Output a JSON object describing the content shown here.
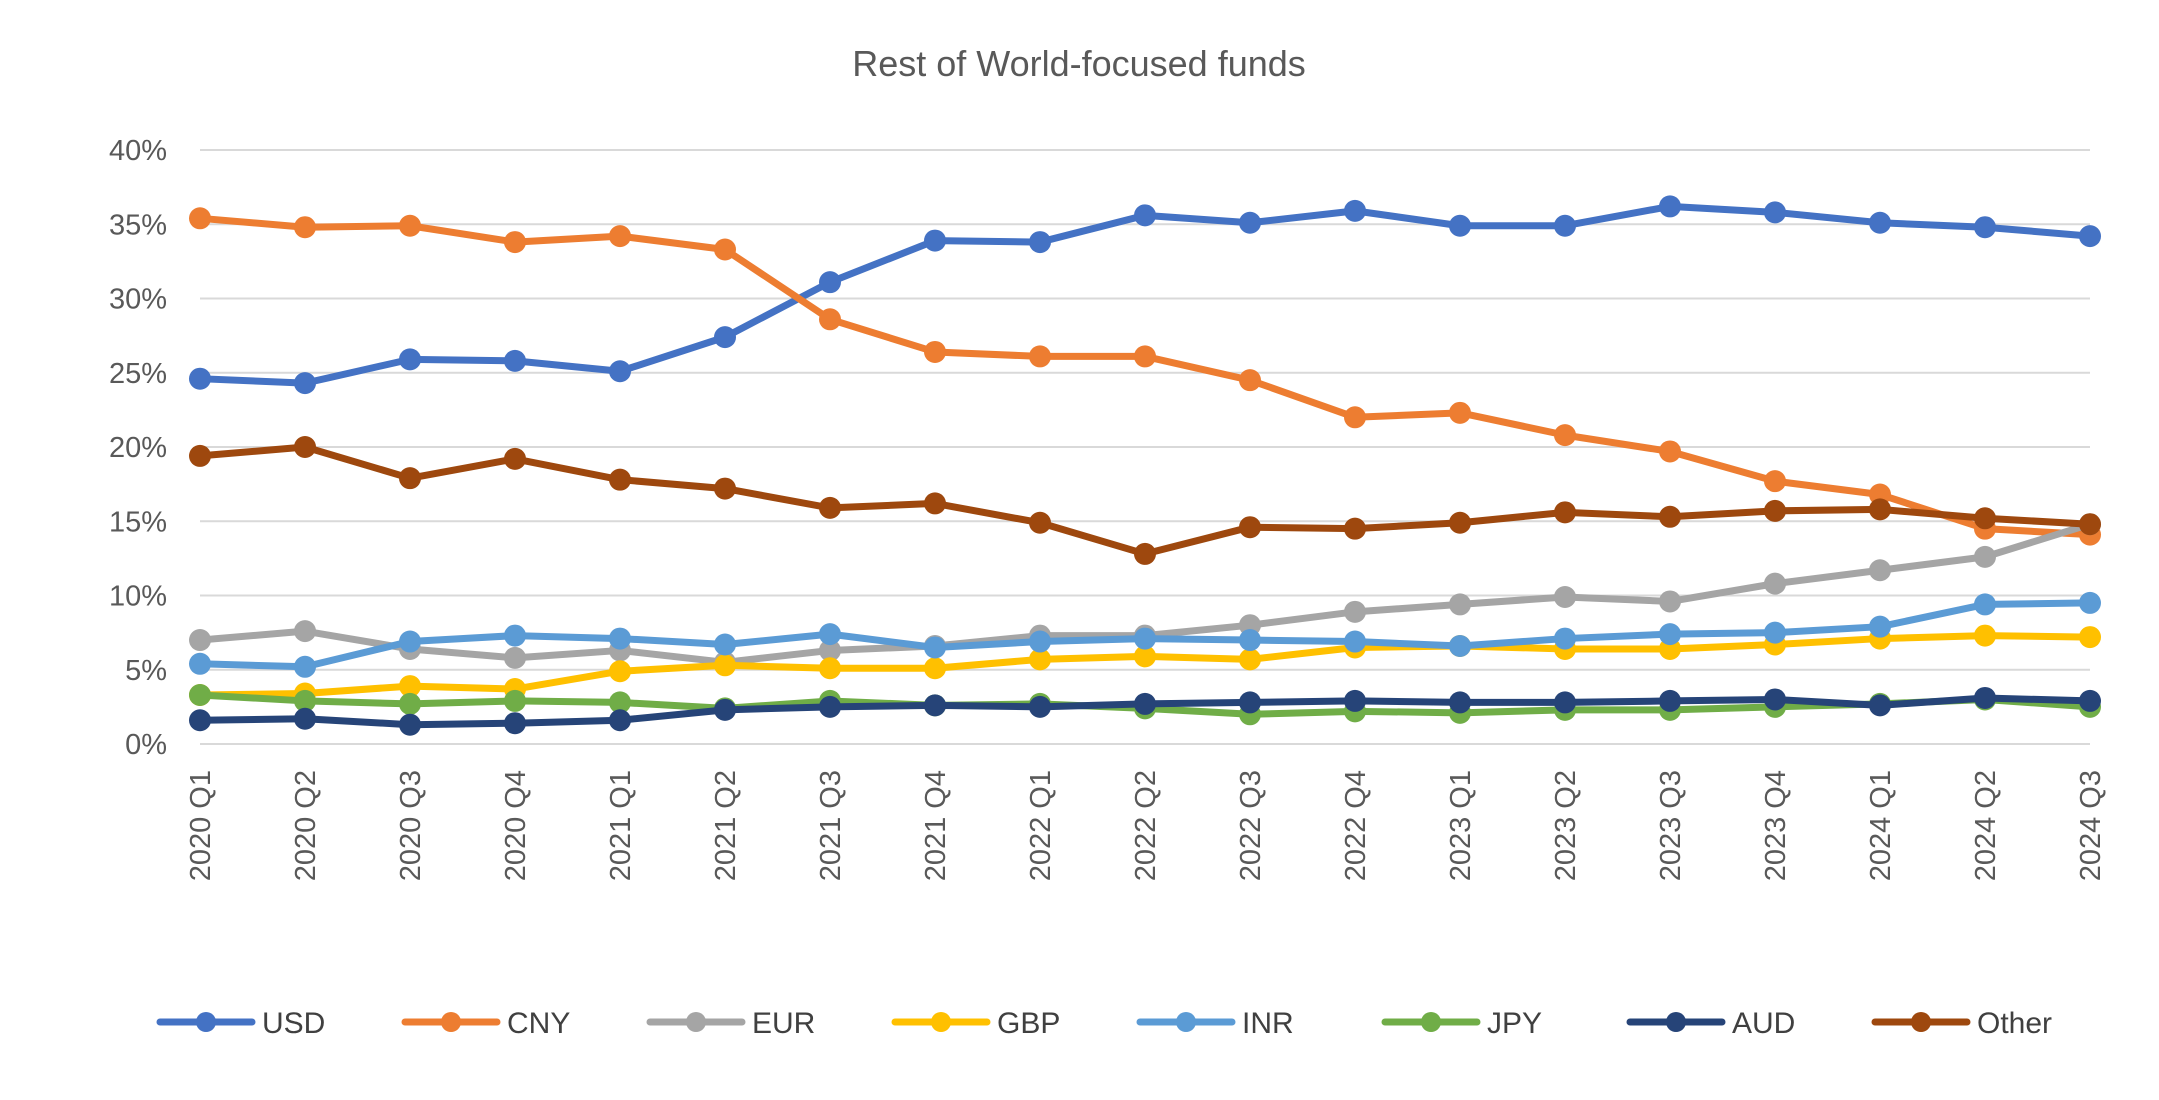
{
  "chart_data": {
    "type": "line",
    "title": "Rest of World-focused funds",
    "xlabel": "",
    "ylabel": "",
    "ylim": [
      0,
      40
    ],
    "y_ticks": [
      "0%",
      "5%",
      "10%",
      "15%",
      "20%",
      "25%",
      "30%",
      "35%",
      "40%"
    ],
    "grid": true,
    "legend_position": "bottom",
    "categories": [
      "2020 Q1",
      "2020 Q2",
      "2020 Q3",
      "2020 Q4",
      "2021 Q1",
      "2021 Q2",
      "2021 Q3",
      "2021 Q4",
      "2022 Q1",
      "2022 Q2",
      "2022 Q3",
      "2022 Q4",
      "2023 Q1",
      "2023 Q2",
      "2023 Q3",
      "2023 Q4",
      "2024 Q1",
      "2024 Q2",
      "2024 Q3"
    ],
    "series": [
      {
        "name": "USD",
        "color": "#4472C4",
        "values": [
          24.6,
          24.3,
          25.9,
          25.8,
          25.1,
          27.4,
          31.1,
          33.9,
          33.8,
          35.6,
          35.1,
          35.9,
          34.9,
          34.9,
          36.2,
          35.8,
          35.1,
          34.8,
          34.2
        ]
      },
      {
        "name": "CNY",
        "color": "#ED7D31",
        "values": [
          35.4,
          34.8,
          34.9,
          33.8,
          34.2,
          33.3,
          28.6,
          26.4,
          26.1,
          26.1,
          24.5,
          22.0,
          22.3,
          20.8,
          19.7,
          17.7,
          16.8,
          14.5,
          14.1
        ]
      },
      {
        "name": "EUR",
        "color": "#A5A5A5",
        "values": [
          7.0,
          7.6,
          6.4,
          5.8,
          6.3,
          5.5,
          6.3,
          6.6,
          7.3,
          7.3,
          8.0,
          8.9,
          9.4,
          9.9,
          9.6,
          10.8,
          11.7,
          12.6,
          14.8
        ]
      },
      {
        "name": "GBP",
        "color": "#FFC000",
        "values": [
          3.3,
          3.4,
          3.9,
          3.7,
          4.9,
          5.3,
          5.1,
          5.1,
          5.7,
          5.9,
          5.7,
          6.5,
          6.6,
          6.4,
          6.4,
          6.7,
          7.1,
          7.3,
          7.2
        ]
      },
      {
        "name": "INR",
        "color": "#5B9BD5",
        "values": [
          5.4,
          5.2,
          6.9,
          7.3,
          7.1,
          6.7,
          7.4,
          6.5,
          6.9,
          7.1,
          7.0,
          6.9,
          6.6,
          7.1,
          7.4,
          7.5,
          7.9,
          9.4,
          9.5
        ]
      },
      {
        "name": "JPY",
        "color": "#70AD47",
        "values": [
          3.3,
          2.9,
          2.7,
          2.9,
          2.8,
          2.4,
          2.9,
          2.6,
          2.7,
          2.4,
          2.0,
          2.2,
          2.1,
          2.3,
          2.3,
          2.5,
          2.7,
          3.0,
          2.5
        ]
      },
      {
        "name": "AUD",
        "color": "#264478",
        "values": [
          1.6,
          1.7,
          1.3,
          1.4,
          1.6,
          2.3,
          2.5,
          2.6,
          2.5,
          2.7,
          2.8,
          2.9,
          2.8,
          2.8,
          2.9,
          3.0,
          2.6,
          3.1,
          2.9
        ]
      },
      {
        "name": "Other",
        "color": "#9E480E",
        "values": [
          19.4,
          20.0,
          17.9,
          19.2,
          17.8,
          17.2,
          15.9,
          16.2,
          14.9,
          12.8,
          14.6,
          14.5,
          14.9,
          15.6,
          15.3,
          15.7,
          15.8,
          15.2,
          14.8
        ]
      }
    ]
  }
}
